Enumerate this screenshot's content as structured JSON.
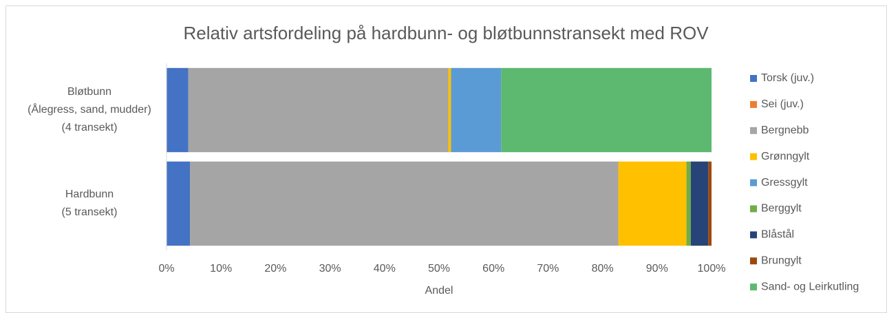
{
  "chart_data": {
    "type": "stacked-barh",
    "title": "Relativ artsfordeling på hardbunn- og bløtbunnstransekt med ROV",
    "x_label": "Andel",
    "categories": [
      [
        "Bløtbunn",
        "(Ålegress, sand, mudder)",
        "(4 transekt)"
      ],
      [
        "Hardbunn",
        "(5 transekt)"
      ]
    ],
    "series": [
      {
        "name": "Torsk (juv.)",
        "color": "#4472c4",
        "values": [
          4.0,
          4.3
        ]
      },
      {
        "name": "Sei (juv.)",
        "color": "#ed7d31",
        "values": [
          0,
          0
        ]
      },
      {
        "name": "Bergnebb",
        "color": "#a5a5a5",
        "values": [
          47.7,
          78.6
        ]
      },
      {
        "name": "Grønngylt",
        "color": "#ffc000",
        "values": [
          0.5,
          12.5
        ]
      },
      {
        "name": "Gressgylt",
        "color": "#5b9bd5",
        "values": [
          9.2,
          0
        ]
      },
      {
        "name": "Berggylt",
        "color": "#70ad47",
        "values": [
          0,
          0.8
        ]
      },
      {
        "name": "Blåstål",
        "color": "#264478",
        "values": [
          0,
          3.2
        ]
      },
      {
        "name": "Brungylt",
        "color": "#9e480e",
        "values": [
          0,
          0.6
        ]
      },
      {
        "name": "Sand- og Leirkutling",
        "color": "#5cb96f",
        "values": [
          38.6,
          0
        ]
      }
    ],
    "xlim": [
      0,
      100
    ],
    "xticks": [
      {
        "value": 0,
        "label": "0%"
      },
      {
        "value": 10,
        "label": "10%"
      },
      {
        "value": 20,
        "label": "20%"
      },
      {
        "value": 30,
        "label": "30%"
      },
      {
        "value": 40,
        "label": "40%"
      },
      {
        "value": 50,
        "label": "50%"
      },
      {
        "value": 60,
        "label": "60%"
      },
      {
        "value": 70,
        "label": "70%"
      },
      {
        "value": 80,
        "label": "80%"
      },
      {
        "value": 90,
        "label": "90%"
      },
      {
        "value": 100,
        "label": "100%"
      }
    ],
    "legend": "right"
  }
}
